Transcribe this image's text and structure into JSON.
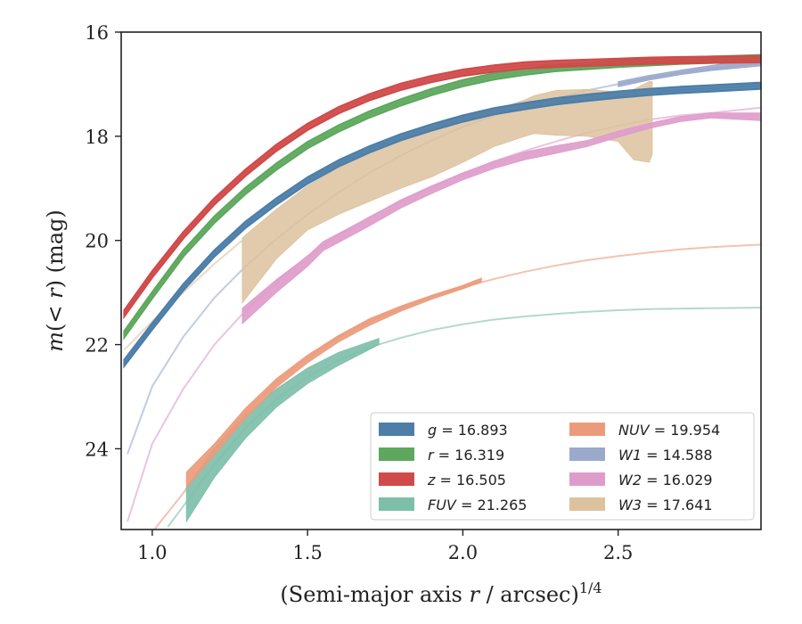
{
  "chart_data": {
    "type": "line",
    "xlabel": "(Semi-major axis r / arcsec)^1/4",
    "xlabel_parts": {
      "main": "(Semi-major axis ",
      "var": "r",
      "rest": " / arcsec)",
      "sup": "1/4"
    },
    "ylabel": "m(< r) (mag)",
    "ylabel_parts": {
      "m": "m",
      "open": "(",
      "lt": "< ",
      "r": "r",
      "close": ")",
      "unit": " (mag)"
    },
    "xlim": [
      0.9,
      2.96
    ],
    "ylim": [
      25.55,
      16.0
    ],
    "y_inverted": true,
    "xticks": [
      1.0,
      1.5,
      2.0,
      2.5
    ],
    "xtick_labels": [
      "1.0",
      "1.5",
      "2.0",
      "2.5"
    ],
    "yticks": [
      16,
      18,
      20,
      22,
      24
    ],
    "ytick_labels": [
      "16",
      "18",
      "20",
      "22",
      "24"
    ],
    "grid": false,
    "legend_placement": "lower-right",
    "series": [
      {
        "name": "g",
        "legend_value": "16.893",
        "color": "#4c7ea8",
        "curve": {
          "x": [
            0.91,
            1.0,
            1.1,
            1.2,
            1.3,
            1.4,
            1.5,
            1.6,
            1.7,
            1.8,
            1.9,
            2.0,
            2.1,
            2.2,
            2.3,
            2.4,
            2.5,
            2.6,
            2.7,
            2.8,
            2.96
          ],
          "y": [
            22.35,
            21.65,
            20.9,
            20.25,
            19.7,
            19.25,
            18.85,
            18.52,
            18.25,
            18.02,
            17.83,
            17.66,
            17.52,
            17.42,
            17.33,
            17.26,
            17.2,
            17.15,
            17.11,
            17.08,
            17.03
          ]
        },
        "band": {
          "x": [
            0.91,
            1.0,
            1.1,
            1.2,
            1.3,
            1.4,
            1.5,
            1.6,
            1.7,
            1.8,
            1.9,
            2.0,
            2.1,
            2.2,
            2.3,
            2.4,
            2.5,
            2.6,
            2.7,
            2.8,
            2.96
          ],
          "y": [
            22.35,
            21.65,
            20.9,
            20.25,
            19.7,
            19.25,
            18.85,
            18.52,
            18.25,
            18.02,
            17.83,
            17.66,
            17.52,
            17.42,
            17.33,
            17.26,
            17.2,
            17.15,
            17.11,
            17.08,
            17.03
          ],
          "width": 0.06
        }
      },
      {
        "name": "r",
        "legend_value": "16.319",
        "color": "#5ea85e",
        "curve": {
          "x": [
            0.91,
            1.0,
            1.1,
            1.2,
            1.3,
            1.4,
            1.5,
            1.6,
            1.7,
            1.8,
            1.9,
            2.0,
            2.1,
            2.2,
            2.3,
            2.4,
            2.5,
            2.6,
            2.7,
            2.8,
            2.96
          ],
          "y": [
            21.8,
            21.05,
            20.25,
            19.6,
            19.05,
            18.58,
            18.17,
            17.85,
            17.58,
            17.35,
            17.15,
            16.98,
            16.85,
            16.76,
            16.69,
            16.65,
            16.61,
            16.58,
            16.55,
            16.53,
            16.5
          ]
        },
        "band": {
          "x": [
            0.91,
            1.0,
            1.1,
            1.2,
            1.3,
            1.4,
            1.5,
            1.6,
            1.7,
            1.8,
            1.9,
            2.0,
            2.1,
            2.2,
            2.3,
            2.4,
            2.5,
            2.6,
            2.7,
            2.8,
            2.96
          ],
          "y": [
            21.8,
            21.05,
            20.25,
            19.6,
            19.05,
            18.58,
            18.17,
            17.85,
            17.58,
            17.35,
            17.15,
            16.98,
            16.85,
            16.76,
            16.69,
            16.65,
            16.61,
            16.58,
            16.55,
            16.53,
            16.5
          ],
          "width": 0.06
        }
      },
      {
        "name": "z",
        "legend_value": "16.505",
        "color": "#d04a4a",
        "curve": {
          "x": [
            0.91,
            1.0,
            1.1,
            1.2,
            1.3,
            1.4,
            1.5,
            1.6,
            1.7,
            1.8,
            1.9,
            2.0,
            2.1,
            2.2,
            2.3,
            2.4,
            2.5,
            2.6,
            2.7,
            2.8,
            2.96
          ],
          "y": [
            21.4,
            20.65,
            19.9,
            19.25,
            18.7,
            18.22,
            17.82,
            17.5,
            17.25,
            17.05,
            16.9,
            16.78,
            16.7,
            16.64,
            16.61,
            16.59,
            16.57,
            16.55,
            16.54,
            16.53,
            16.52
          ]
        },
        "band": {
          "x": [
            0.91,
            1.0,
            1.1,
            1.2,
            1.3,
            1.4,
            1.5,
            1.6,
            1.7,
            1.8,
            1.9,
            2.0,
            2.1,
            2.2,
            2.3,
            2.4,
            2.5,
            2.6,
            2.7,
            2.8,
            2.96
          ],
          "y": [
            21.4,
            20.65,
            19.9,
            19.25,
            18.7,
            18.22,
            17.82,
            17.5,
            17.25,
            17.05,
            16.9,
            16.78,
            16.7,
            16.64,
            16.61,
            16.59,
            16.57,
            16.55,
            16.54,
            16.53,
            16.52
          ],
          "width": 0.06
        }
      },
      {
        "name": "FUV",
        "legend_value": "21.265",
        "color": "#7ebfaa",
        "curve": {
          "x": [
            1.05,
            1.2,
            1.3,
            1.4,
            1.5,
            1.6,
            1.7,
            1.8,
            1.9,
            2.0,
            2.1,
            2.2,
            2.3,
            2.4,
            2.5,
            2.6,
            2.7,
            2.8,
            2.96
          ],
          "y": [
            25.5,
            24.3,
            23.6,
            23.05,
            22.62,
            22.3,
            22.05,
            21.87,
            21.72,
            21.61,
            21.52,
            21.46,
            21.41,
            21.37,
            21.34,
            21.32,
            21.31,
            21.3,
            21.29
          ]
        },
        "band": {
          "x": [
            1.11,
            1.2,
            1.3,
            1.4,
            1.5,
            1.6,
            1.73
          ],
          "y_top": [
            24.75,
            24.0,
            23.35,
            22.85,
            22.45,
            22.15,
            21.88
          ],
          "y_bot": [
            25.4,
            24.55,
            23.8,
            23.2,
            22.75,
            22.4,
            22.0
          ]
        }
      },
      {
        "name": "NUV",
        "legend_value": "19.954",
        "color": "#eb9b7b",
        "curve": {
          "x": [
            1.0,
            1.1,
            1.2,
            1.3,
            1.4,
            1.5,
            1.6,
            1.7,
            1.8,
            1.9,
            2.0,
            2.1,
            2.2,
            2.3,
            2.4,
            2.5,
            2.6,
            2.7,
            2.8,
            2.96
          ],
          "y": [
            25.6,
            24.85,
            24.0,
            23.3,
            22.72,
            22.25,
            21.86,
            21.55,
            21.3,
            21.08,
            20.9,
            20.74,
            20.6,
            20.48,
            20.38,
            20.3,
            20.23,
            20.17,
            20.13,
            20.08
          ]
        },
        "band": {
          "x": [
            1.11,
            1.2,
            1.3,
            1.4,
            1.5,
            1.6,
            1.7,
            1.8,
            1.9,
            2.0,
            2.06
          ],
          "y_top": [
            24.45,
            23.9,
            23.22,
            22.65,
            22.2,
            21.82,
            21.5,
            21.26,
            21.05,
            20.86,
            20.72
          ],
          "y_bot": [
            24.75,
            24.12,
            23.42,
            22.82,
            22.35,
            21.95,
            21.63,
            21.36,
            21.13,
            20.93,
            20.8
          ]
        }
      },
      {
        "name": "W1",
        "legend_value": "14.588",
        "color": "#9aa9cc",
        "curve": {
          "x": [
            0.92,
            1.0,
            1.1,
            1.2,
            1.3,
            1.4,
            1.5,
            1.6,
            1.7,
            1.8,
            1.9,
            2.0,
            2.1,
            2.2,
            2.3,
            2.4,
            2.5,
            2.6,
            2.7,
            2.8,
            2.96
          ],
          "y": [
            24.1,
            22.8,
            21.85,
            21.1,
            20.5,
            19.97,
            19.5,
            19.08,
            18.7,
            18.37,
            18.08,
            17.82,
            17.6,
            17.42,
            17.27,
            17.12,
            17.0,
            16.88,
            16.78,
            16.7,
            16.6
          ]
        },
        "band": {
          "x": [
            2.5,
            2.6,
            2.7,
            2.8,
            2.96
          ],
          "y_top": [
            16.95,
            16.83,
            16.73,
            16.64,
            16.5
          ],
          "y_bot": [
            17.05,
            16.92,
            16.82,
            16.74,
            16.65
          ]
        }
      },
      {
        "name": "W2",
        "legend_value": "16.029",
        "color": "#de9ccb",
        "curve": {
          "x": [
            0.92,
            1.0,
            1.1,
            1.2,
            1.3,
            1.4,
            1.5,
            1.6,
            1.7,
            1.8,
            1.9,
            2.0,
            2.1,
            2.2,
            2.3,
            2.4,
            2.5,
            2.6,
            2.7,
            2.8,
            2.96
          ],
          "y": [
            25.4,
            23.9,
            22.85,
            22.0,
            21.35,
            20.8,
            20.3,
            19.9,
            19.55,
            19.25,
            18.98,
            18.72,
            18.48,
            18.28,
            18.1,
            17.93,
            17.8,
            17.68,
            17.6,
            17.55,
            17.45
          ]
        },
        "band": {
          "x": [
            1.29,
            1.4,
            1.5,
            1.55,
            1.7,
            1.8,
            1.9,
            2.0,
            2.1,
            2.2,
            2.3,
            2.4,
            2.5,
            2.6,
            2.7,
            2.8,
            2.96
          ],
          "y_top": [
            21.3,
            20.75,
            20.3,
            20.02,
            19.55,
            19.22,
            18.95,
            18.7,
            18.48,
            18.3,
            18.18,
            18.08,
            17.9,
            17.75,
            17.62,
            17.55,
            17.55
          ],
          "y_bot": [
            21.6,
            21.0,
            20.5,
            20.2,
            19.72,
            19.38,
            19.1,
            18.84,
            18.62,
            18.45,
            18.33,
            18.2,
            18.02,
            17.85,
            17.72,
            17.65,
            17.7
          ]
        }
      },
      {
        "name": "W3",
        "legend_value": "17.641",
        "color": "#dcc29e",
        "curve": {
          "x": [
            0.91,
            1.0,
            1.1,
            1.2,
            1.29
          ],
          "y": [
            22.1,
            21.55,
            21.0,
            20.45,
            20.0
          ]
        },
        "band": {
          "x": [
            1.29,
            1.4,
            1.5,
            1.6,
            1.7,
            1.8,
            1.9,
            2.0,
            2.1,
            2.2,
            2.23,
            2.3,
            2.4,
            2.5,
            2.55,
            2.6,
            2.61
          ],
          "y_top": [
            19.95,
            19.4,
            18.95,
            18.6,
            18.3,
            18.05,
            17.82,
            17.6,
            17.5,
            17.3,
            17.22,
            17.12,
            17.1,
            17.15,
            17.1,
            16.95,
            16.95
          ],
          "y_bot": [
            21.2,
            20.35,
            19.8,
            19.5,
            19.25,
            19.0,
            18.78,
            18.5,
            18.2,
            18.0,
            17.95,
            17.98,
            18.0,
            18.1,
            18.45,
            18.5,
            18.35
          ]
        }
      }
    ],
    "legend": {
      "columns": [
        [
          {
            "label": "g",
            "value": "16.893",
            "color": "#4c7ea8",
            "italic": true
          },
          {
            "label": "r",
            "value": "16.319",
            "color": "#5ea85e",
            "italic": true
          },
          {
            "label": "z",
            "value": "16.505",
            "color": "#d04a4a",
            "italic": true
          },
          {
            "label": "FUV",
            "value": "21.265",
            "color": "#7ebfaa",
            "italic": true
          }
        ],
        [
          {
            "label": "NUV",
            "value": "19.954",
            "color": "#eb9b7b",
            "italic": true
          },
          {
            "label": "W1",
            "value": "14.588",
            "color": "#9aa9cc",
            "italic": true
          },
          {
            "label": "W2",
            "value": "16.029",
            "color": "#de9ccb",
            "italic": true
          },
          {
            "label": "W3",
            "value": "17.641",
            "color": "#dcc29e",
            "italic": true
          }
        ]
      ]
    }
  }
}
